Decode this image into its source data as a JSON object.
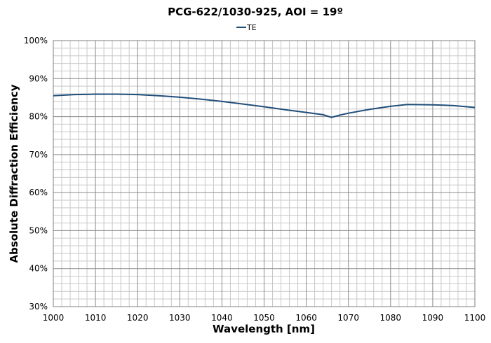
{
  "chart_data": {
    "type": "line",
    "title": "PCG-622/1030-925, AOI = 19º",
    "xlabel": "Wavelength [nm]",
    "ylabel": "Absolute Diffraction Efficiency",
    "xlim": [
      1000,
      1100
    ],
    "ylim": [
      30,
      100
    ],
    "x_ticks": [
      "1000",
      "1010",
      "1020",
      "1030",
      "1040",
      "1050",
      "1060",
      "1070",
      "1080",
      "1090",
      "1100"
    ],
    "y_ticks": [
      "30%",
      "40%",
      "50%",
      "60%",
      "70%",
      "80%",
      "90%",
      "100%"
    ],
    "grid": true,
    "legend_position": "top-center",
    "series": [
      {
        "name": "TE",
        "color": "#1f4e79",
        "points": [
          [
            1000,
            85.5
          ],
          [
            1005,
            85.8
          ],
          [
            1010,
            85.9
          ],
          [
            1015,
            85.9
          ],
          [
            1020,
            85.8
          ],
          [
            1025,
            85.5
          ],
          [
            1030,
            85.1
          ],
          [
            1035,
            84.6
          ],
          [
            1040,
            84.0
          ],
          [
            1045,
            83.3
          ],
          [
            1050,
            82.6
          ],
          [
            1055,
            81.8
          ],
          [
            1060,
            81.1
          ],
          [
            1064,
            80.5
          ],
          [
            1066,
            79.8
          ],
          [
            1068,
            80.4
          ],
          [
            1070,
            80.9
          ],
          [
            1075,
            81.9
          ],
          [
            1080,
            82.7
          ],
          [
            1084,
            83.2
          ],
          [
            1090,
            83.1
          ],
          [
            1095,
            82.9
          ],
          [
            1100,
            82.4
          ]
        ]
      }
    ]
  }
}
